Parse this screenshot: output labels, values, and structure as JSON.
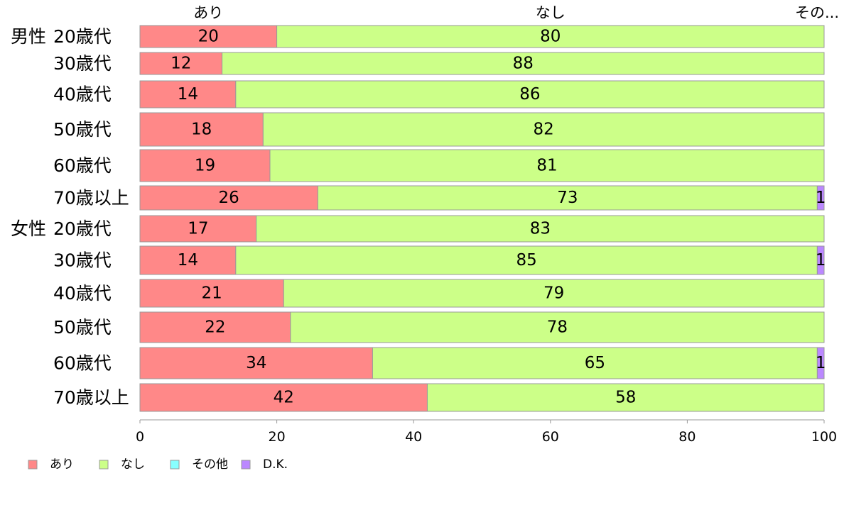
{
  "chart_data": {
    "type": "bar",
    "orientation": "horizontal",
    "stacked": true,
    "categories": [
      "20歳代",
      "30歳代",
      "40歳代",
      "50歳代",
      "60歳代",
      "70歳以上",
      "20歳代",
      "30歳代",
      "40歳代",
      "50歳代",
      "60歳代",
      "70歳以上"
    ],
    "groups": [
      {
        "label": "男性",
        "first_index": 0
      },
      {
        "label": "女性",
        "first_index": 6
      }
    ],
    "series": [
      {
        "name": "あり",
        "color": "#ff8888",
        "values": [
          20,
          12,
          14,
          18,
          19,
          26,
          17,
          14,
          21,
          22,
          34,
          42
        ]
      },
      {
        "name": "なし",
        "color": "#ccff88",
        "values": [
          80,
          88,
          86,
          82,
          81,
          73,
          83,
          85,
          79,
          78,
          65,
          58
        ]
      },
      {
        "name": "その他",
        "color": "#88ffff",
        "values": [
          0,
          0,
          0,
          0,
          0,
          0,
          0,
          0,
          0,
          0,
          0,
          0
        ]
      },
      {
        "name": "D.K.",
        "color": "#bb88ff",
        "values": [
          0,
          0,
          0,
          0,
          0,
          1,
          0,
          1,
          0,
          0,
          1,
          0
        ]
      }
    ],
    "top_labels": [
      "あり",
      "なし",
      "その..."
    ],
    "xlim": [
      0,
      100
    ],
    "xticks": [
      0,
      20,
      40,
      60,
      80,
      100
    ],
    "grid": false,
    "legend_position": "bottom-left"
  }
}
